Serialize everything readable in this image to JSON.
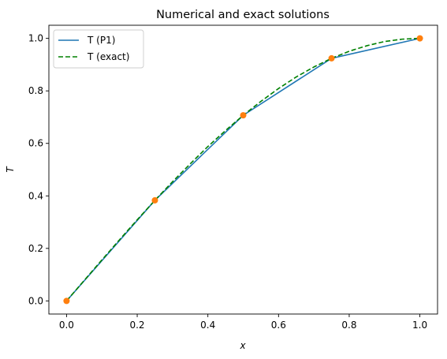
{
  "chart_data": {
    "type": "line",
    "title": "Numerical and exact solutions",
    "xlabel": "x",
    "ylabel": "T",
    "xlim": [
      -0.05,
      1.05
    ],
    "ylim": [
      -0.05,
      1.05
    ],
    "xticks": [
      0.0,
      0.2,
      0.4,
      0.6,
      0.8,
      1.0
    ],
    "xtick_labels": [
      "0.0",
      "0.2",
      "0.4",
      "0.6",
      "0.8",
      "1.0"
    ],
    "yticks": [
      0.0,
      0.2,
      0.4,
      0.6,
      0.8,
      1.0
    ],
    "ytick_labels": [
      "0.0",
      "0.2",
      "0.4",
      "0.6",
      "0.8",
      "1.0"
    ],
    "grid": false,
    "legend_position": "upper-left",
    "series": [
      {
        "name": "T (P1)",
        "style": "solid",
        "color": "#1f77b4",
        "x": [
          0.0,
          0.25,
          0.5,
          0.75,
          1.0
        ],
        "y": [
          0.0,
          0.383,
          0.707,
          0.924,
          1.0
        ]
      },
      {
        "name": "T (exact)",
        "style": "dashed",
        "color": "#008000",
        "x": [
          0.0,
          0.05,
          0.1,
          0.15,
          0.2,
          0.25,
          0.3,
          0.35,
          0.4,
          0.45,
          0.5,
          0.55,
          0.6,
          0.65,
          0.7,
          0.75,
          0.8,
          0.85,
          0.9,
          0.95,
          1.0
        ],
        "y": [
          0.0,
          0.078,
          0.156,
          0.233,
          0.309,
          0.383,
          0.454,
          0.522,
          0.588,
          0.649,
          0.707,
          0.76,
          0.809,
          0.853,
          0.891,
          0.924,
          0.951,
          0.972,
          0.988,
          0.997,
          1.0
        ]
      }
    ],
    "markers": {
      "color": "#ff7f0e",
      "x": [
        0.0,
        0.25,
        0.5,
        0.75,
        1.0
      ],
      "y": [
        0.0,
        0.383,
        0.707,
        0.924,
        1.0
      ]
    }
  }
}
